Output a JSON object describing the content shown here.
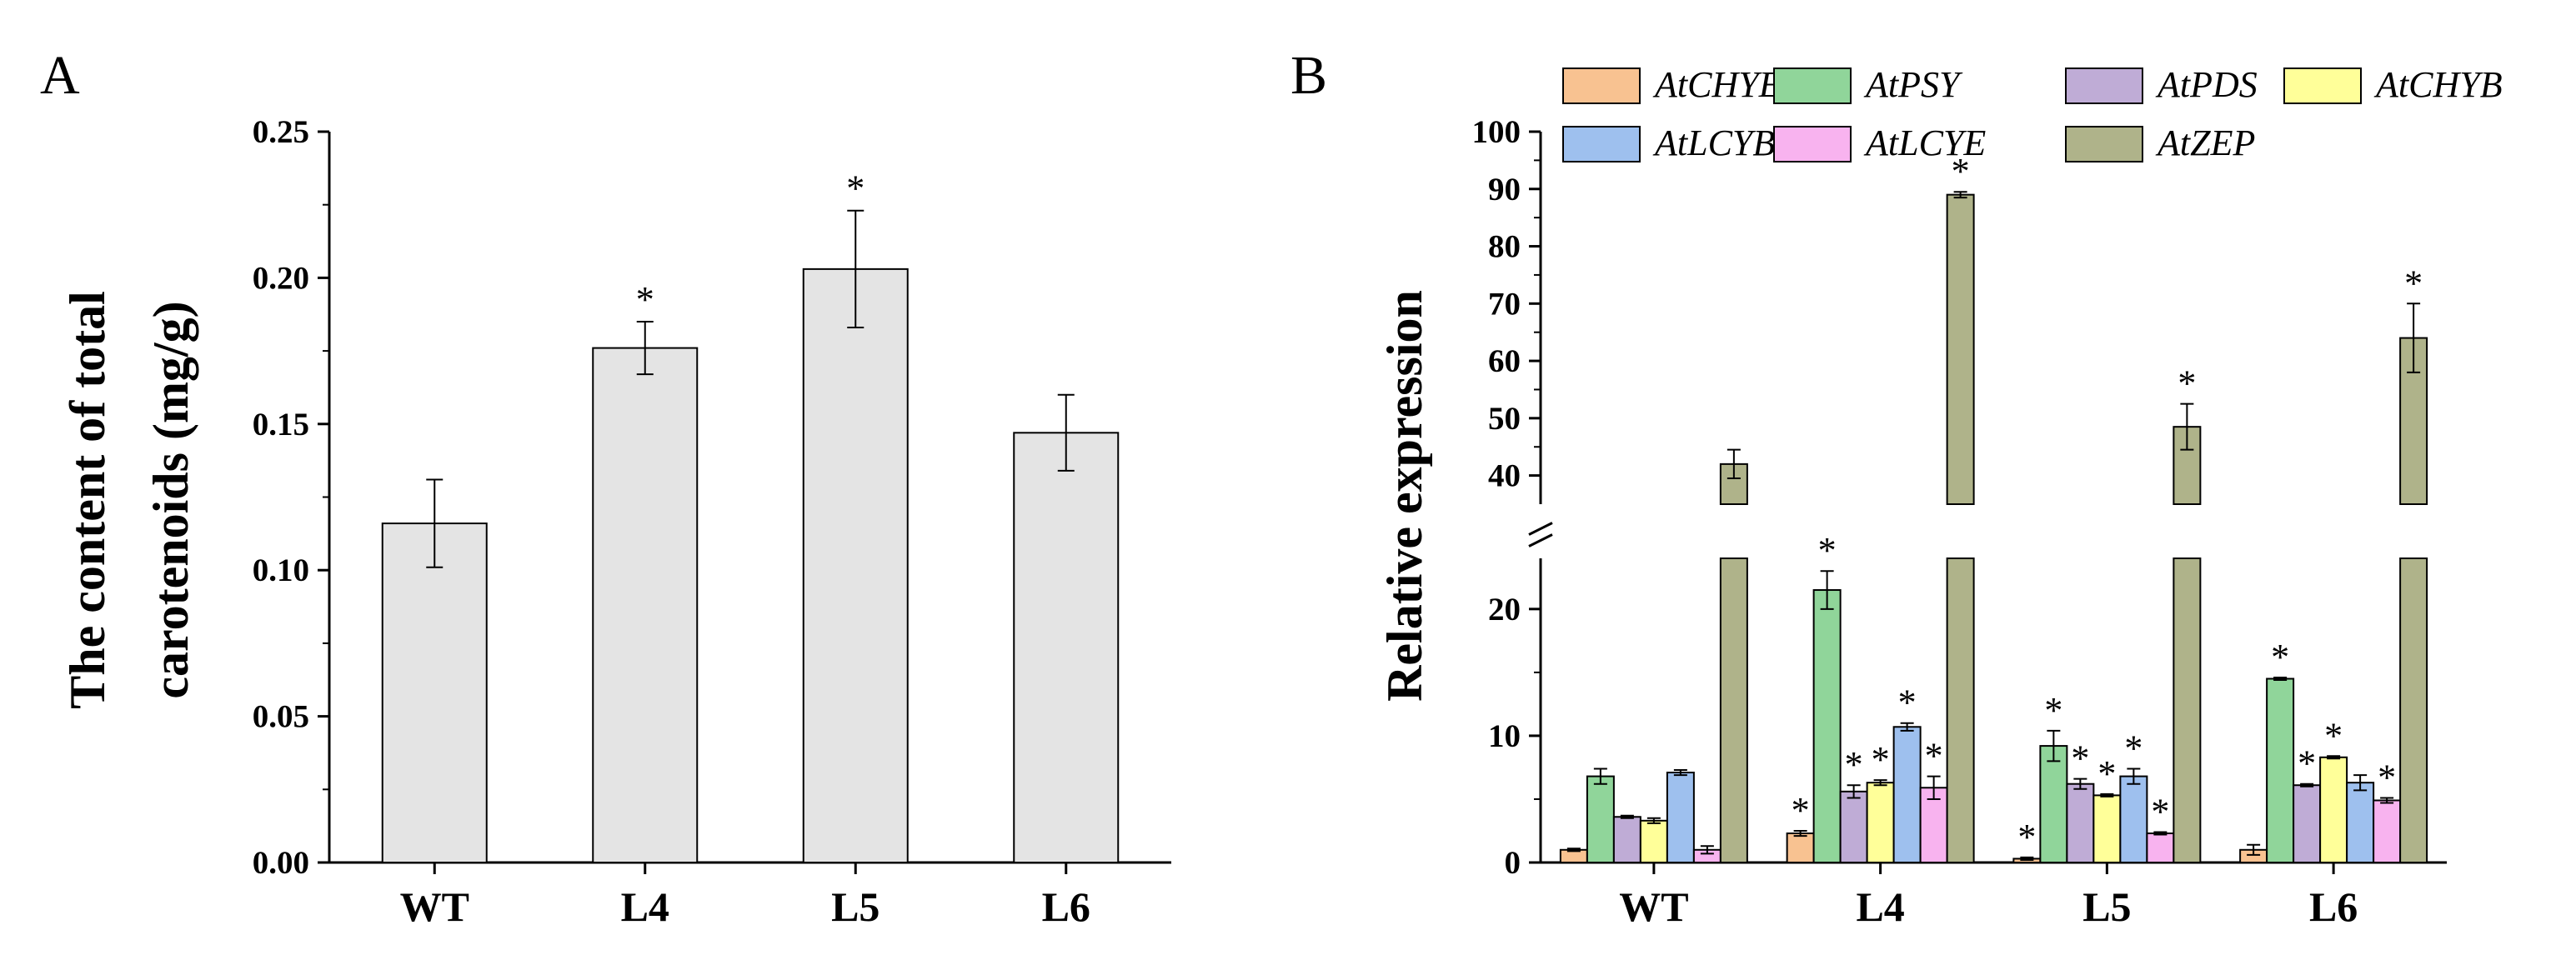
{
  "chart_data": [
    {
      "panel_label": "A",
      "type": "bar",
      "ylabel": [
        "The content of total",
        "carotenoids (mg/g)"
      ],
      "categories": [
        "WT",
        "L4",
        "L5",
        "L6"
      ],
      "values": [
        0.116,
        0.176,
        0.203,
        0.147
      ],
      "errors": [
        0.015,
        0.009,
        0.02,
        0.013
      ],
      "significant": [
        false,
        true,
        true,
        false
      ],
      "significance_mark": "*",
      "ylim": [
        0,
        0.25
      ],
      "yticks": [
        "0.00",
        "0.05",
        "0.10",
        "0.15",
        "0.20",
        "0.25"
      ],
      "bar_color": "#e4e4e4",
      "grid": false
    },
    {
      "panel_label": "B",
      "type": "bar",
      "ylabel": "Relative expression",
      "categories": [
        "WT",
        "L4",
        "L5",
        "L6"
      ],
      "axis_break": {
        "lower": [
          0,
          24
        ],
        "upper": [
          35,
          100
        ]
      },
      "yticks_lower": [
        "0",
        "10",
        "20"
      ],
      "yticks_upper": [
        "40",
        "50",
        "60",
        "70",
        "80",
        "90",
        "100"
      ],
      "legend_position": "top",
      "significance_mark": "*",
      "grid": false,
      "series": [
        {
          "name": "AtCHYE",
          "color": "#f8c291",
          "values": [
            1.0,
            2.3,
            0.3,
            1.0
          ],
          "errors": [
            0.1,
            0.2,
            0.1,
            0.4
          ],
          "significant": [
            false,
            true,
            true,
            false
          ]
        },
        {
          "name": "AtPSY",
          "color": "#90d59a",
          "values": [
            6.8,
            21.5,
            9.2,
            14.5
          ],
          "errors": [
            0.6,
            1.5,
            1.2,
            0.1
          ],
          "significant": [
            false,
            true,
            true,
            true
          ]
        },
        {
          "name": "AtPDS",
          "color": "#bfacd6",
          "values": [
            3.6,
            5.6,
            6.2,
            6.1
          ],
          "errors": [
            0.1,
            0.5,
            0.4,
            0.1
          ],
          "significant": [
            false,
            true,
            true,
            true
          ]
        },
        {
          "name": "AtCHYB",
          "color": "#ffff99",
          "values": [
            3.3,
            6.3,
            5.3,
            8.3
          ],
          "errors": [
            0.2,
            0.2,
            0.1,
            0.1
          ],
          "significant": [
            false,
            true,
            true,
            true
          ]
        },
        {
          "name": "AtLCYB",
          "color": "#9ec0ee",
          "values": [
            7.1,
            10.7,
            6.8,
            6.3
          ],
          "errors": [
            0.2,
            0.3,
            0.6,
            0.6
          ],
          "significant": [
            false,
            true,
            true,
            false
          ]
        },
        {
          "name": "AtLCYE",
          "color": "#f8b3ef",
          "values": [
            1.0,
            5.9,
            2.3,
            4.9
          ],
          "errors": [
            0.3,
            0.9,
            0.1,
            0.2
          ],
          "significant": [
            false,
            true,
            true,
            true
          ]
        },
        {
          "name": "AtZEP",
          "color": "#afb38a",
          "values": [
            42,
            89,
            48.5,
            64
          ],
          "errors": [
            2.5,
            0.5,
            4,
            6
          ],
          "significant": [
            false,
            true,
            true,
            true
          ]
        }
      ]
    }
  ]
}
